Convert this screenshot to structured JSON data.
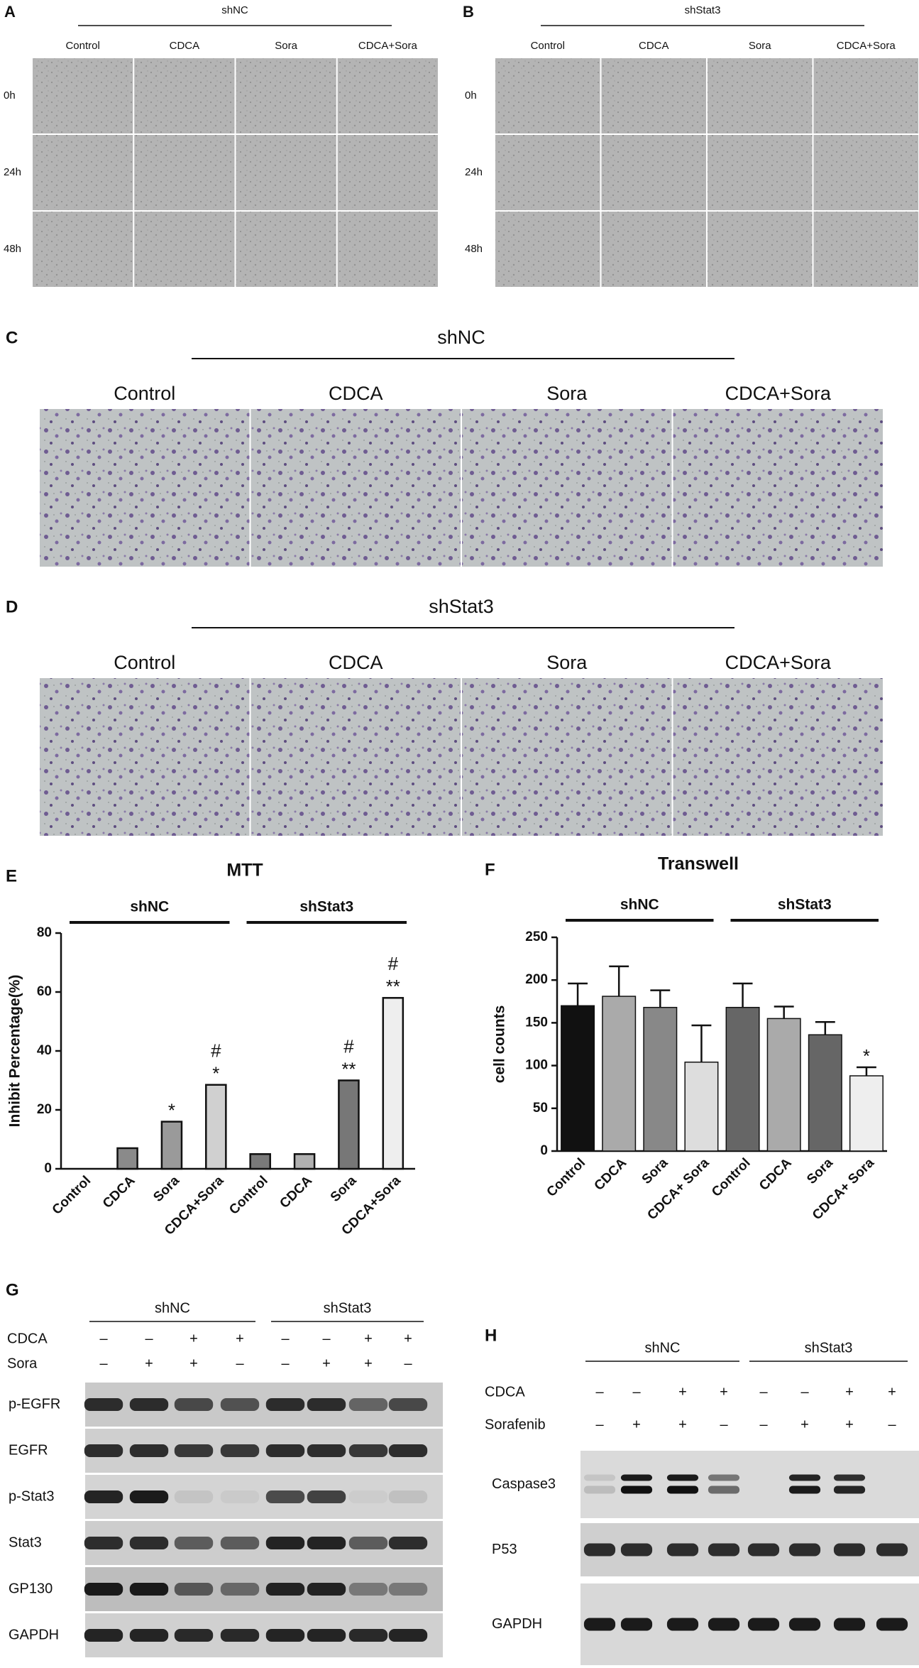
{
  "panel_a": {
    "label": "A",
    "title": "shNC",
    "columns": [
      "Control",
      "CDCA",
      "Sora",
      "CDCA+Sora"
    ],
    "rows": [
      "0h",
      "24h",
      "48h"
    ]
  },
  "panel_b": {
    "label": "B",
    "title": "shStat3",
    "columns": [
      "Control",
      "CDCA",
      "Sora",
      "CDCA+Sora"
    ],
    "rows": [
      "0h",
      "24h",
      "48h"
    ]
  },
  "panel_c": {
    "label": "C",
    "title": "shNC",
    "columns": [
      "Control",
      "CDCA",
      "Sora",
      "CDCA+Sora"
    ]
  },
  "panel_d": {
    "label": "D",
    "title": "shStat3",
    "columns": [
      "Control",
      "CDCA",
      "Sora",
      "CDCA+Sora"
    ]
  },
  "chart_data": [
    {
      "type": "bar",
      "panel_label": "E",
      "title": "MTT",
      "y_label": "Inhibit Percentage(%)",
      "groups": [
        "shNC",
        "shStat3"
      ],
      "categories": [
        "Control",
        "CDCA",
        "Sora",
        "CDCA+Sora",
        "Control",
        "CDCA",
        "Sora",
        "CDCA+Sora"
      ],
      "values": [
        0,
        7,
        16,
        28.5,
        5,
        5,
        30,
        58
      ],
      "colors": [
        "#ffffff",
        "#8a8a8a",
        "#9a9a9a",
        "#d0d0d0",
        "#7a7a7a",
        "#b0b0b0",
        "#777777",
        "#eeeeee"
      ],
      "marks_top": [
        null,
        null,
        null,
        "#",
        null,
        null,
        "#",
        "#"
      ],
      "marks_bottom": [
        null,
        null,
        "*",
        "*",
        null,
        null,
        "**",
        "**"
      ],
      "ylim": [
        0,
        80
      ],
      "yticks": [
        0,
        20,
        40,
        60,
        80
      ]
    },
    {
      "type": "bar",
      "panel_label": "F",
      "title": "Transwell",
      "y_label": "cell counts",
      "groups": [
        "shNC",
        "shStat3"
      ],
      "categories": [
        "Control",
        "CDCA",
        "Sora",
        "CDCA+ Sora",
        "Control",
        "CDCA",
        "Sora",
        "CDCA+ Sora"
      ],
      "values": [
        170,
        181,
        168,
        104,
        168,
        155,
        136,
        88
      ],
      "errors": [
        26,
        35,
        20,
        43,
        28,
        14,
        15,
        10
      ],
      "colors": [
        "#111111",
        "#aaaaaa",
        "#888888",
        "#dddddd",
        "#666666",
        "#aaaaaa",
        "#666666",
        "#eeeeee"
      ],
      "marks_top": [
        null,
        null,
        null,
        null,
        null,
        null,
        null,
        "*"
      ],
      "ylim": [
        0,
        250
      ],
      "yticks": [
        0,
        50,
        100,
        150,
        200,
        250
      ]
    }
  ],
  "panel_g": {
    "label": "G",
    "groups": [
      "shNC",
      "shStat3"
    ],
    "conditions": [
      {
        "name": "CDCA",
        "signs": [
          "–",
          "–",
          "+",
          "+",
          "–",
          "–",
          "+",
          "+"
        ]
      },
      {
        "name": "Sora",
        "signs": [
          "–",
          "+",
          "+",
          "–",
          "–",
          "+",
          "+",
          "–"
        ]
      }
    ],
    "blots": [
      "p-EGFR",
      "EGFR",
      "p-Stat3",
      "Stat3",
      "GP130",
      "GAPDH"
    ]
  },
  "panel_h": {
    "label": "H",
    "groups": [
      "shNC",
      "shStat3"
    ],
    "conditions": [
      {
        "name": "CDCA",
        "signs": [
          "–",
          "–",
          "+",
          "+",
          "–",
          "–",
          "+",
          "+"
        ]
      },
      {
        "name": "Sorafenib",
        "signs": [
          "–",
          "+",
          "+",
          "–",
          "–",
          "+",
          "+",
          "–"
        ]
      }
    ],
    "blots": [
      "Caspase3",
      "P53",
      "GAPDH"
    ]
  }
}
